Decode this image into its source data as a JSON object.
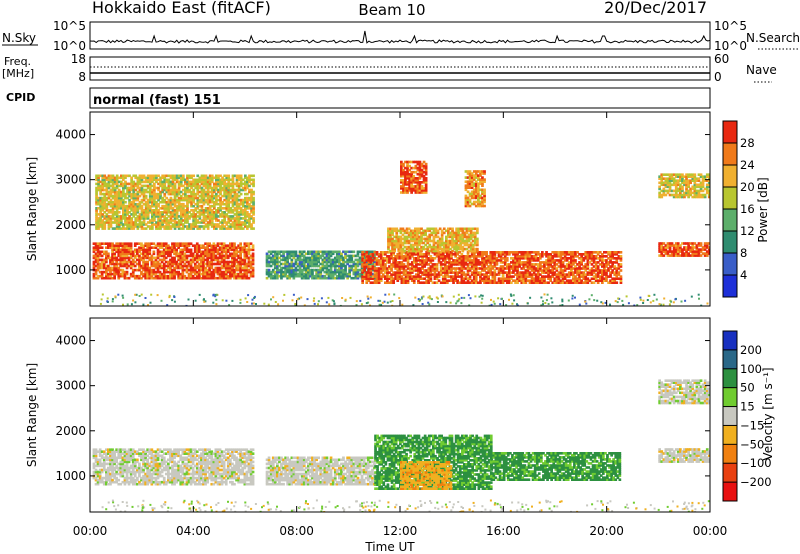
{
  "header": {
    "station": "Hokkaido East (fitACF)",
    "beam": "Beam 10",
    "date": "20/Dec/2017"
  },
  "nsky_panel": {
    "label": "N.Sky",
    "left_ticks": [
      "10^5",
      "10^0"
    ],
    "right_ticks": [
      "10^5",
      "10^0"
    ],
    "right_label": "N.Search"
  },
  "freq_panel": {
    "label_line1": "Freq.",
    "label_line2": "[MHz]",
    "left_ticks": [
      "18",
      "8"
    ],
    "right_ticks": [
      "60",
      "0"
    ],
    "right_label": "Nave"
  },
  "cpid_panel": {
    "label": "CPID",
    "text": "normal (fast) 151"
  },
  "axes": {
    "ylabel": "Slant Range [km]",
    "xlabel": "Time UT",
    "y_ticks": [
      "1000",
      "2000",
      "3000",
      "4000"
    ],
    "x_ticks": [
      "00:00",
      "04:00",
      "08:00",
      "12:00",
      "16:00",
      "20:00",
      "00:00"
    ]
  },
  "chart_data": [
    {
      "type": "heatmap",
      "quantity": "power",
      "x_range": [
        "00:00",
        "24:00"
      ],
      "ylim": [
        200,
        4500
      ],
      "colorbar": {
        "label": "Power [dB]",
        "ticks": [
          "4",
          "8",
          "12",
          "16",
          "20",
          "24",
          "28"
        ],
        "range": [
          0,
          32
        ],
        "colors": [
          "#1e30d8",
          "#3a5ec8",
          "#2f8c70",
          "#5cae6a",
          "#b8c630",
          "#f0b030",
          "#f07a1a",
          "#e82810"
        ]
      },
      "regions": [
        {
          "t_start": 0.1,
          "t_end": 6.3,
          "r_start": 800,
          "r_end": 1600,
          "level_db": 28
        },
        {
          "t_start": 0.2,
          "t_end": 6.3,
          "r_start": 1900,
          "r_end": 3100,
          "level_db": 20
        },
        {
          "t_start": 6.8,
          "t_end": 11.0,
          "r_start": 800,
          "r_end": 1400,
          "level_db": 12
        },
        {
          "t_start": 10.5,
          "t_end": 20.5,
          "r_start": 700,
          "r_end": 1400,
          "level_db": 28
        },
        {
          "t_start": 11.5,
          "t_end": 15.0,
          "r_start": 1400,
          "r_end": 1900,
          "level_db": 22
        },
        {
          "t_start": 12.0,
          "t_end": 13.0,
          "r_start": 2700,
          "r_end": 3400,
          "level_db": 28
        },
        {
          "t_start": 14.5,
          "t_end": 15.3,
          "r_start": 2400,
          "r_end": 3200,
          "level_db": 24
        },
        {
          "t_start": 22.0,
          "t_end": 24.0,
          "r_start": 1300,
          "r_end": 1600,
          "level_db": 28
        },
        {
          "t_start": 22.0,
          "t_end": 24.0,
          "r_start": 2600,
          "r_end": 3100,
          "level_db": 20
        }
      ]
    },
    {
      "type": "heatmap",
      "quantity": "velocity",
      "x_range": [
        "00:00",
        "24:00"
      ],
      "ylim": [
        200,
        4500
      ],
      "colorbar": {
        "label": "Velocity [m s⁻¹]",
        "ticks": [
          "200",
          "100",
          "50",
          "15",
          "−15",
          "−50",
          "−100",
          "−200"
        ],
        "colors": [
          "#1830c0",
          "#2a6888",
          "#2c9040",
          "#70cc30",
          "#c8c8c0",
          "#f0b020",
          "#f08010",
          "#e84010",
          "#e81010"
        ]
      },
      "regions": [
        {
          "t_start": 0.1,
          "t_end": 6.3,
          "r_start": 800,
          "r_end": 1600,
          "velocity": 0
        },
        {
          "t_start": 6.8,
          "t_end": 11.0,
          "r_start": 800,
          "r_end": 1400,
          "velocity": 0
        },
        {
          "t_start": 11.0,
          "t_end": 15.5,
          "r_start": 700,
          "r_end": 1900,
          "velocity": 60
        },
        {
          "t_start": 12.0,
          "t_end": 14.0,
          "r_start": 700,
          "r_end": 1300,
          "velocity": -40
        },
        {
          "t_start": 15.5,
          "t_end": 20.5,
          "r_start": 900,
          "r_end": 1500,
          "velocity": 60
        },
        {
          "t_start": 22.0,
          "t_end": 24.0,
          "r_start": 1300,
          "r_end": 1600,
          "velocity": 0
        },
        {
          "t_start": 22.0,
          "t_end": 24.0,
          "r_start": 2600,
          "r_end": 3100,
          "velocity": 0
        }
      ]
    }
  ]
}
